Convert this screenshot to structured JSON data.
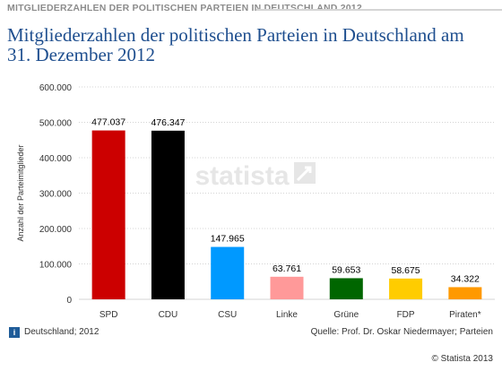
{
  "header": {
    "banner": "MITGLIEDERZAHLEN DER POLITISCHEN PARTEIEN IN DEUTSCHLAND 2012",
    "title": "Mitgliederzahlen der politischen Parteien in Deutschland am 31. Dezember 2012"
  },
  "watermark": "statista",
  "footer": {
    "info_icon_glyph": "i",
    "region": "Deutschland; 2012",
    "source": "Quelle: Prof. Dr. Oskar Niedermayer; Parteien",
    "copyright": "© Statista 2013"
  },
  "chart_data": {
    "type": "bar",
    "ylabel": "Anzahl der Parteimitglieder",
    "ylim": [
      0,
      600000
    ],
    "yticks": [
      0,
      100000,
      200000,
      300000,
      400000,
      500000,
      600000
    ],
    "ytick_labels": [
      "0",
      "100.000",
      "200.000",
      "300.000",
      "400.000",
      "500.000",
      "600.000"
    ],
    "grid": true,
    "categories": [
      "SPD",
      "CDU",
      "CSU",
      "Linke",
      "Grüne",
      "FDP",
      "Piraten*"
    ],
    "values": [
      477037,
      476347,
      147965,
      63761,
      59653,
      58675,
      34322
    ],
    "value_labels": [
      "477.037",
      "476.347",
      "147.965",
      "63.761",
      "59.653",
      "58.675",
      "34.322"
    ],
    "colors": [
      "#cc0000",
      "#000000",
      "#0099ff",
      "#ff9999",
      "#006600",
      "#ffcc00",
      "#ff9900"
    ]
  }
}
